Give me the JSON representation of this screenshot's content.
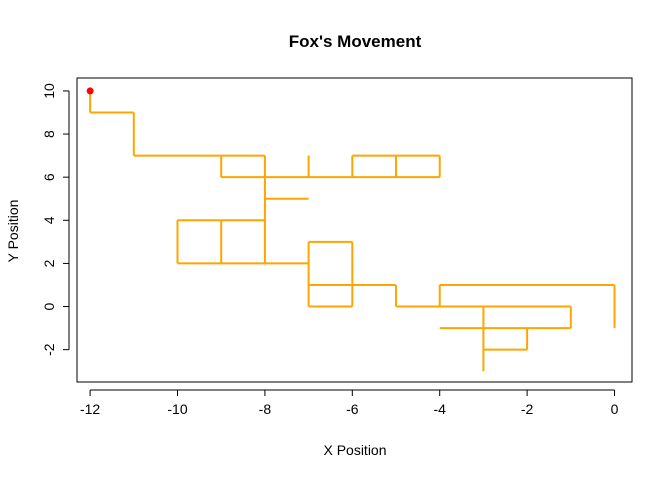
{
  "chart_data": {
    "type": "line",
    "title": "Fox's Movement",
    "xlabel": "X Position",
    "ylabel": "Y Position",
    "xlim": [
      -12.3,
      0.4
    ],
    "ylim": [
      -3.5,
      10.6
    ],
    "xticks": [
      -12,
      -10,
      -8,
      -6,
      -4,
      -2,
      0
    ],
    "yticks": [
      -2,
      0,
      2,
      4,
      6,
      8,
      10
    ],
    "grid": false,
    "legend": "none",
    "path_color": "#FFA500",
    "start_marker_color": "#FF0000",
    "start": {
      "x": -12,
      "y": 10
    },
    "segments": [
      [
        [
          -12,
          10
        ],
        [
          -12,
          9
        ]
      ],
      [
        [
          -12,
          9
        ],
        [
          -11,
          9
        ]
      ],
      [
        [
          -11,
          9
        ],
        [
          -11,
          7
        ]
      ],
      [
        [
          -11,
          7
        ],
        [
          -8,
          7
        ]
      ],
      [
        [
          -9,
          7
        ],
        [
          -9,
          6
        ]
      ],
      [
        [
          -9,
          6
        ],
        [
          -4,
          6
        ]
      ],
      [
        [
          -8,
          7
        ],
        [
          -8,
          2
        ]
      ],
      [
        [
          -8,
          5
        ],
        [
          -7,
          5
        ]
      ],
      [
        [
          -7,
          7
        ],
        [
          -7,
          6
        ]
      ],
      [
        [
          -6,
          7
        ],
        [
          -6,
          6
        ]
      ],
      [
        [
          -6,
          7
        ],
        [
          -4,
          7
        ]
      ],
      [
        [
          -5,
          7
        ],
        [
          -5,
          6
        ]
      ],
      [
        [
          -4,
          7
        ],
        [
          -4,
          6
        ]
      ],
      [
        [
          -10,
          4
        ],
        [
          -8,
          4
        ]
      ],
      [
        [
          -10,
          4
        ],
        [
          -10,
          2
        ]
      ],
      [
        [
          -9,
          4
        ],
        [
          -9,
          2
        ]
      ],
      [
        [
          -10,
          2
        ],
        [
          -7,
          2
        ]
      ],
      [
        [
          -7,
          3
        ],
        [
          -7,
          0
        ]
      ],
      [
        [
          -7,
          3
        ],
        [
          -6,
          3
        ]
      ],
      [
        [
          -6,
          3
        ],
        [
          -6,
          0
        ]
      ],
      [
        [
          -7,
          0
        ],
        [
          -6,
          0
        ]
      ],
      [
        [
          -7,
          1
        ],
        [
          -5,
          1
        ]
      ],
      [
        [
          -5,
          1
        ],
        [
          -5,
          0
        ]
      ],
      [
        [
          -5,
          0
        ],
        [
          -1,
          0
        ]
      ],
      [
        [
          -4,
          1
        ],
        [
          0,
          1
        ]
      ],
      [
        [
          -4,
          1
        ],
        [
          -4,
          0
        ]
      ],
      [
        [
          0,
          1
        ],
        [
          0,
          -1
        ]
      ],
      [
        [
          -1,
          0
        ],
        [
          -1,
          -1
        ]
      ],
      [
        [
          -4,
          -1
        ],
        [
          -1,
          -1
        ]
      ],
      [
        [
          -3,
          0
        ],
        [
          -3,
          -3
        ]
      ],
      [
        [
          -3,
          -2
        ],
        [
          -2,
          -2
        ]
      ],
      [
        [
          -2,
          -2
        ],
        [
          -2,
          -1
        ]
      ]
    ]
  }
}
